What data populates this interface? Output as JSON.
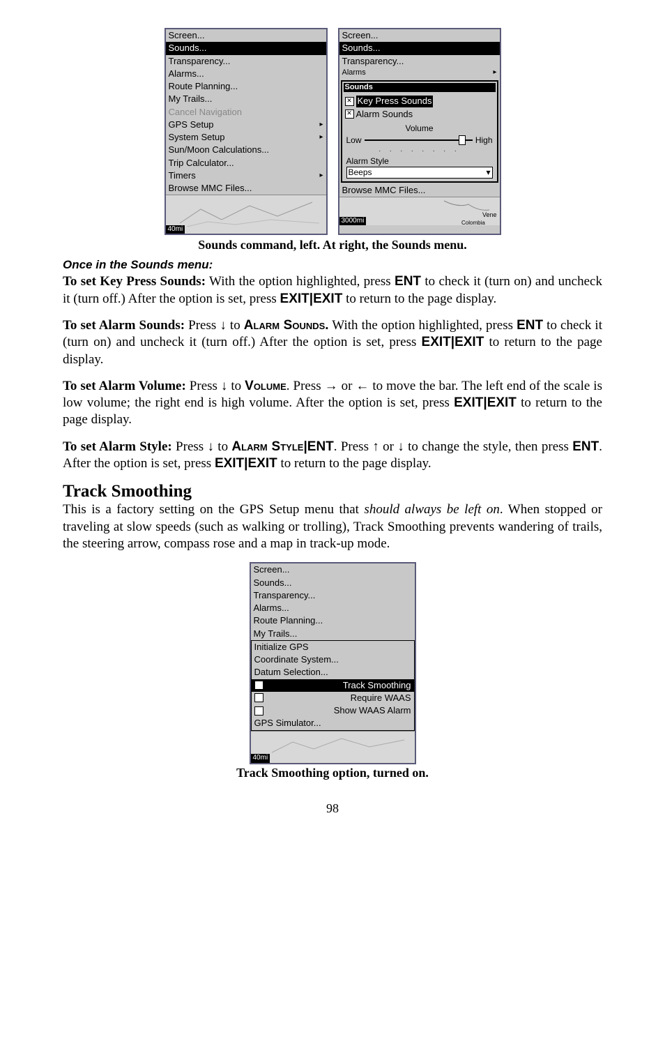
{
  "figure1": {
    "left_menu": {
      "items": [
        {
          "label": "Screen...",
          "highlighted": false,
          "submenu": false
        },
        {
          "label": "Sounds...",
          "highlighted": true,
          "submenu": false
        },
        {
          "label": "Transparency...",
          "highlighted": false,
          "submenu": false
        },
        {
          "label": "Alarms...",
          "highlighted": false,
          "submenu": false
        },
        {
          "label": "Route Planning...",
          "highlighted": false,
          "submenu": false
        },
        {
          "label": "My Trails...",
          "highlighted": false,
          "submenu": false
        },
        {
          "label": "Cancel Navigation",
          "highlighted": false,
          "submenu": false,
          "disabled": true
        },
        {
          "label": "GPS Setup",
          "highlighted": false,
          "submenu": true
        },
        {
          "label": "System Setup",
          "highlighted": false,
          "submenu": true
        },
        {
          "label": "Sun/Moon Calculations...",
          "highlighted": false,
          "submenu": false
        },
        {
          "label": "Trip Calculator...",
          "highlighted": false,
          "submenu": false
        },
        {
          "label": "Timers",
          "highlighted": false,
          "submenu": true
        },
        {
          "label": "Browse MMC Files...",
          "highlighted": false,
          "submenu": false
        }
      ],
      "scale": "40mi"
    },
    "right_menu": {
      "top_items": [
        {
          "label": "Screen..."
        },
        {
          "label": "Sounds...",
          "highlighted": true
        },
        {
          "label": "Transparency..."
        },
        {
          "label": "Alarms",
          "partial": true
        }
      ],
      "popup_title": "Sounds",
      "key_press_label": "Key Press Sounds",
      "alarm_sounds_label": "Alarm Sounds",
      "volume_label": "Volume",
      "low_label": "Low",
      "high_label": "High",
      "alarm_style_label": "Alarm Style",
      "alarm_style_value": "Beeps",
      "browse_label": "Browse MMC Files...",
      "scale": "3000mi",
      "map_label": "Vene"
    },
    "caption": "Sounds command, left. At right, the Sounds menu."
  },
  "sounds_section": {
    "heading": "Once in the Sounds menu:",
    "p1_lead_bold": "To set Key Press Sounds:",
    "p1_rest_a": " With the option highlighted, press ",
    "p1_ent": "ENT",
    "p1_rest_b": " to check it (turn on) and uncheck it (turn off.) After the option is set, press ",
    "p1_exit": "EXIT",
    "p1_pipe": "|",
    "p1_exit2": "EXIT",
    "p1_rest_c": " to return to the page display.",
    "p2_lead_bold": "To set Alarm Sounds:",
    "p2_a": " Press ↓ to ",
    "p2_sc": "Alarm Sounds.",
    "p2_b": " With the option highlighted, press ",
    "p2_ent": "ENT",
    "p2_c": " to check it (turn on) and uncheck it (turn off.) After the option is set, press ",
    "p2_exit": "EXIT",
    "p2_pipe": "|",
    "p2_exit2": "EXIT",
    "p2_d": " to return to the page display.",
    "p3_lead_bold": "To set Alarm Volume:",
    "p3_a": " Press ↓ to ",
    "p3_sc": "Volume",
    "p3_b": ". Press → or ←  to move the bar. The left end of the scale is low volume; the right end is high volume. After the option is set, press ",
    "p3_exit": "EXIT",
    "p3_pipe": "|",
    "p3_exit2": "EXIT",
    "p3_c": " to return to the page display.",
    "p4_lead_bold": "To set Alarm Style:",
    "p4_a": " Press ↓ to ",
    "p4_sc": "Alarm Style",
    "p4_pipe1": "|",
    "p4_ent1": "ENT",
    "p4_b": ". Press ↑ or ↓ to change the style, then press ",
    "p4_ent2": "ENT",
    "p4_c": ". After the option is set, press ",
    "p4_exit": "EXIT",
    "p4_pipe2": "|",
    "p4_exit2": "EXIT",
    "p4_d": " to return to the page display."
  },
  "track_section": {
    "heading": "Track Smoothing",
    "body": "This is a factory setting on the GPS Setup menu that ",
    "italic": "should always be left on",
    "body2": ". When stopped or traveling at slow speeds (such as walking or trolling), Track Smoothing prevents wandering of trails, the steering arrow, compass rose and a map in track-up mode."
  },
  "figure2": {
    "menu_items": [
      {
        "label": "Screen..."
      },
      {
        "label": "Sounds..."
      },
      {
        "label": "Transparency..."
      },
      {
        "label": "Alarms..."
      },
      {
        "label": "Route Planning..."
      },
      {
        "label": "My Trails..."
      }
    ],
    "submenu_items": [
      {
        "label": "Initialize GPS",
        "checked": null
      },
      {
        "label": "Coordinate System...",
        "checked": null
      },
      {
        "label": "Datum Selection...",
        "checked": null
      },
      {
        "label": "Track Smoothing",
        "checked": true,
        "highlighted": true
      },
      {
        "label": "Require WAAS",
        "checked": false
      },
      {
        "label": "Show WAAS Alarm",
        "checked": false
      },
      {
        "label": "GPS Simulator...",
        "checked": null
      }
    ],
    "scale": "40mi",
    "caption": "Track Smoothing option, turned on."
  },
  "page_number": "98"
}
